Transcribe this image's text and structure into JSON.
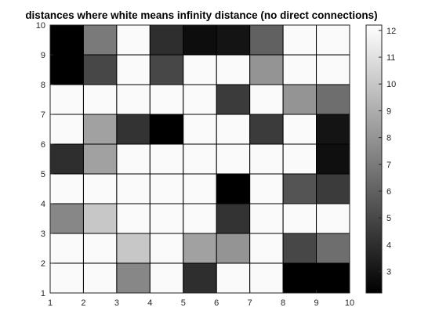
{
  "chart_data": {
    "type": "heatmap",
    "title": "distances where white means infinity distance (no direct connections)",
    "xlabel": "",
    "ylabel": "",
    "xlim": [
      1,
      10
    ],
    "ylim": [
      1,
      10
    ],
    "x_ticks": [
      "1",
      "2",
      "3",
      "4",
      "5",
      "6",
      "7",
      "8",
      "9",
      "10"
    ],
    "y_ticks": [
      "1",
      "2",
      "3",
      "4",
      "5",
      "6",
      "7",
      "8",
      "9",
      "10"
    ],
    "grid": true,
    "colormap": "gray",
    "color_range": [
      2.2,
      12.2
    ],
    "colorbar_ticks": [
      "3",
      "4",
      "5",
      "6",
      "7",
      "8",
      "9",
      "10",
      "11",
      "12"
    ],
    "colorbar_tick_values": [
      3,
      4,
      5,
      6,
      7,
      8,
      9,
      10,
      11,
      12
    ],
    "rows_top_to_bottom": [
      [
        2.2,
        7,
        12,
        4,
        2.7,
        3,
        6,
        12,
        12
      ],
      [
        2.2,
        5,
        12,
        5,
        12,
        12,
        8,
        12,
        12
      ],
      [
        12,
        12,
        12,
        12,
        12,
        4.5,
        12,
        8,
        6.5
      ],
      [
        12,
        8.5,
        4.2,
        2.2,
        12,
        12,
        4.5,
        12,
        3
      ],
      [
        4,
        8.5,
        12,
        12,
        12,
        12,
        12,
        12,
        2.8
      ],
      [
        12,
        12,
        12,
        12,
        12,
        2.2,
        12,
        5.5,
        4.5
      ],
      [
        7.5,
        10,
        12,
        12,
        12,
        4.2,
        12,
        12,
        12
      ],
      [
        12,
        12,
        10,
        12,
        8.5,
        8,
        12,
        5,
        6.5
      ],
      [
        12,
        12,
        7.5,
        12,
        4,
        12,
        12,
        2.2,
        2.2
      ]
    ]
  }
}
